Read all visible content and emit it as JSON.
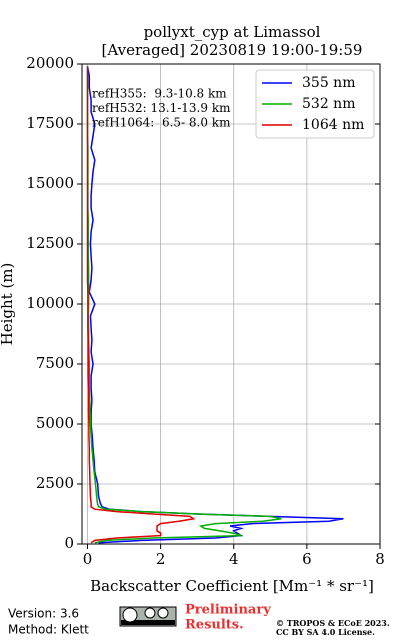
{
  "chart_data": {
    "type": "line",
    "title": [
      "pollyxt_cyp at Limassol",
      "[Averaged] 20230819 19:00-19:59"
    ],
    "xlabel": "Backscatter Coefficient [Mm⁻¹ * sr⁻¹]",
    "ylabel": "Height (m)",
    "xlim": [
      -0.15,
      8
    ],
    "xticks": [
      0,
      2,
      4,
      6,
      8
    ],
    "ylim": [
      0,
      20000
    ],
    "yticks": [
      0,
      2500,
      5000,
      7500,
      10000,
      12500,
      15000,
      17500,
      20000
    ],
    "grid": true,
    "legend": "upper right",
    "annotations": [
      "refH355:  9.3-10.8 km",
      "refH532: 13.1-13.9 km",
      "refH1064:  6.5- 8.0 km"
    ],
    "y": [
      50,
      150,
      250,
      350,
      450,
      550,
      650,
      750,
      850,
      950,
      1050,
      1150,
      1250,
      1350,
      1450,
      1550,
      1700,
      2000,
      2500,
      3000,
      3500,
      4000,
      4500,
      5000,
      5500,
      6000,
      6500,
      7000,
      7500,
      8000,
      8500,
      9000,
      9500,
      10000,
      10500,
      11000,
      11500,
      12000,
      12500,
      13000,
      13500,
      14000,
      14500,
      15000,
      15500,
      16000,
      16500,
      17000,
      17500,
      18000,
      18500,
      19000,
      19500,
      19900
    ],
    "series": [
      {
        "name": "355 nm",
        "color": "#0000ff",
        "values": [
          0.3,
          1.5,
          3.5,
          4.2,
          4.1,
          4.0,
          4.2,
          3.9,
          4.5,
          6.6,
          7.0,
          5.0,
          3.0,
          1.5,
          0.6,
          0.4,
          0.35,
          0.3,
          0.28,
          0.2,
          0.18,
          0.15,
          0.13,
          0.1,
          0.1,
          0.12,
          0.1,
          0.1,
          0.15,
          0.1,
          0.12,
          0.1,
          0.08,
          0.2,
          0.05,
          0.1,
          0.12,
          0.1,
          0.08,
          0.1,
          0.15,
          0.1,
          0.1,
          0.12,
          0.15,
          0.2,
          0.1,
          0.15,
          0.2,
          0.1,
          0.1,
          0.05,
          0.05,
          0.0
        ]
      },
      {
        "name": "532 nm",
        "color": "#00b000",
        "values": [
          0.2,
          0.5,
          1.8,
          4.2,
          4.0,
          3.6,
          3.2,
          3.1,
          3.5,
          4.8,
          5.3,
          5.0,
          3.0,
          1.5,
          0.5,
          0.3,
          0.27,
          0.25,
          0.22,
          0.18,
          0.15,
          0.12,
          0.1,
          0.08,
          0.07,
          0.06,
          0.05,
          0.05,
          0.05,
          0.04,
          0.03,
          0.03,
          0.02,
          0.03,
          0.03,
          0.03,
          0.03,
          0.02,
          0.02,
          0.02,
          0.02,
          0.01,
          0.01,
          0.01,
          0.01,
          0.01,
          0.01,
          0.0,
          0.0,
          0.0,
          0.0,
          0.0,
          0.0,
          0.0
        ]
      },
      {
        "name": "1064 nm",
        "color": "#e00000",
        "values": [
          0.1,
          0.2,
          0.8,
          2.0,
          2.0,
          1.9,
          1.9,
          1.9,
          2.0,
          2.5,
          2.9,
          2.8,
          1.8,
          0.8,
          0.2,
          0.1,
          0.1,
          0.08,
          0.07,
          0.06,
          0.05,
          0.05,
          0.04,
          0.04,
          0.03,
          0.03,
          0.03,
          0.02,
          0.02,
          0.02,
          0.02,
          0.01,
          0.01,
          0.01,
          0.01,
          0.0,
          0.0,
          0.0,
          0.0,
          0.0,
          0.0,
          0.0,
          0.0,
          0.0,
          0.0,
          0.0,
          0.0,
          0.0,
          0.0,
          0.0,
          0.0,
          0.0,
          0.0,
          0.0
        ]
      }
    ]
  },
  "footer": {
    "version": "Version: 3.6",
    "method": "Method: Klett",
    "stamp": [
      "Preliminary",
      "Results."
    ],
    "copyright": [
      "© TROPOS & ECoE 2023.",
      "CC BY SA 4.0 License."
    ]
  }
}
